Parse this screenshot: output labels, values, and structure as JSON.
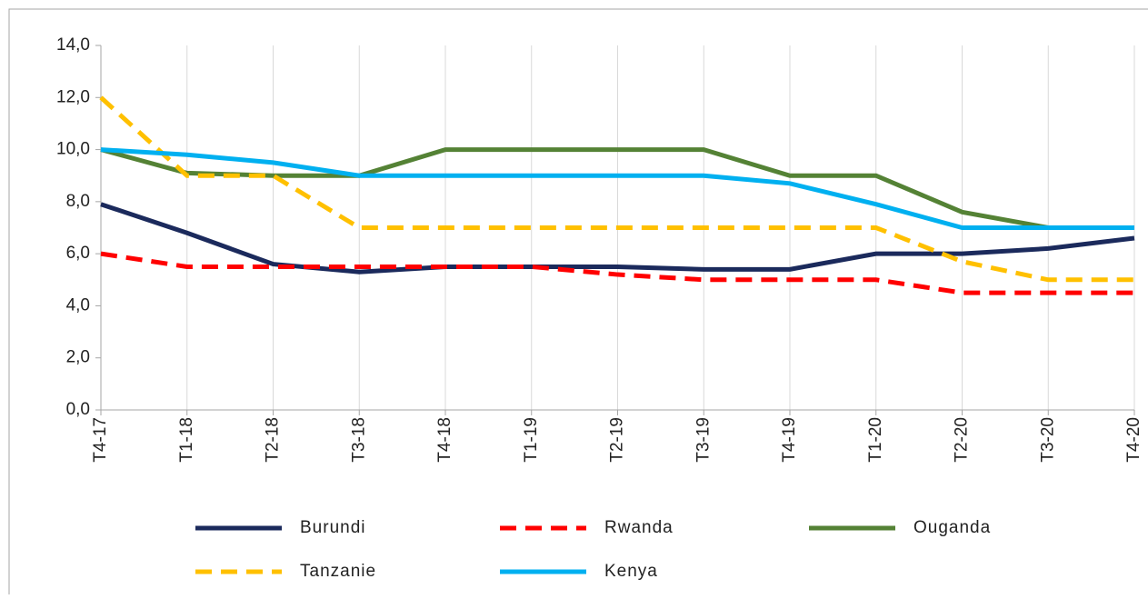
{
  "chart_data": {
    "type": "line",
    "categories": [
      "T4-17",
      "T1-18",
      "T2-18",
      "T3-18",
      "T4-18",
      "T1-19",
      "T2-19",
      "T3-19",
      "T4-19",
      "T1-20",
      "T2-20",
      "T3-20",
      "T4-20"
    ],
    "series": [
      {
        "name": "Burundi",
        "color": "#1b2a5c",
        "line_style": "solid",
        "values": [
          7.9,
          6.8,
          5.6,
          5.3,
          5.5,
          5.5,
          5.5,
          5.4,
          5.4,
          6.0,
          6.0,
          6.2,
          6.6
        ]
      },
      {
        "name": "Rwanda",
        "color": "#ff0000",
        "line_style": "dashed",
        "values": [
          6.0,
          5.5,
          5.5,
          5.5,
          5.5,
          5.5,
          5.2,
          5.0,
          5.0,
          5.0,
          4.5,
          4.5,
          4.5
        ]
      },
      {
        "name": "Ouganda",
        "color": "#548235",
        "line_style": "solid",
        "values": [
          10.0,
          9.1,
          9.0,
          9.0,
          10.0,
          10.0,
          10.0,
          10.0,
          9.0,
          9.0,
          7.6,
          7.0,
          7.0
        ]
      },
      {
        "name": "Tanzanie",
        "color": "#ffc000",
        "line_style": "dashed",
        "values": [
          12.0,
          9.0,
          9.0,
          7.0,
          7.0,
          7.0,
          7.0,
          7.0,
          7.0,
          7.0,
          5.7,
          5.0,
          5.0
        ]
      },
      {
        "name": "Kenya",
        "color": "#00b0f0",
        "line_style": "solid",
        "values": [
          10.0,
          9.8,
          9.5,
          9.0,
          9.0,
          9.0,
          9.0,
          9.0,
          8.7,
          7.9,
          7.0,
          7.0,
          7.0
        ]
      }
    ],
    "ylim": [
      0,
      14
    ],
    "yticks": [
      {
        "value": 0,
        "label": "0,0"
      },
      {
        "value": 2,
        "label": "2,0"
      },
      {
        "value": 4,
        "label": "4,0"
      },
      {
        "value": 6,
        "label": "6,0"
      },
      {
        "value": 8,
        "label": "8,0"
      },
      {
        "value": 10,
        "label": "10,0"
      },
      {
        "value": 12,
        "label": "12,0"
      },
      {
        "value": 14,
        "label": "14,0"
      }
    ],
    "xgrid": true,
    "legend": "bottom"
  }
}
